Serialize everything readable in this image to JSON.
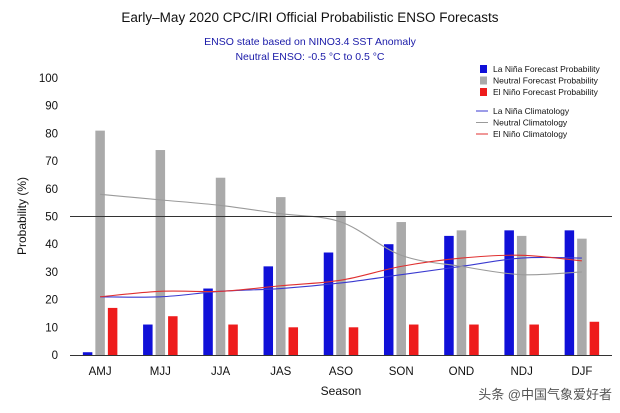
{
  "chart_data": {
    "type": "bar",
    "title": "Early–May 2020 CPC/IRI Official Probabilistic ENSO Forecasts",
    "subtitle_lines": [
      "ENSO state based on NINO3.4 SST Anomaly",
      "Neutral ENSO: -0.5 °C to 0.5 °C"
    ],
    "xlabel": "Season",
    "ylabel": "Probability (%)",
    "ylim": [
      0,
      100
    ],
    "yticks": [
      "0",
      "10",
      "20",
      "30",
      "40",
      "50",
      "60",
      "70",
      "80",
      "90",
      "100"
    ],
    "reference_line": 50,
    "categories": [
      "AMJ",
      "MJJ",
      "JJA",
      "JAS",
      "ASO",
      "SON",
      "OND",
      "NDJ",
      "DJF"
    ],
    "series": [
      {
        "name": "La Niña Forecast Probability",
        "color": "#1010d8",
        "values": [
          1,
          11,
          24,
          32,
          37,
          40,
          43,
          45,
          45
        ]
      },
      {
        "name": "Neutral Forecast Probability",
        "color": "#aaaaaa",
        "values": [
          81,
          74,
          64,
          57,
          52,
          48,
          45,
          43,
          42
        ]
      },
      {
        "name": "El Niño Forecast Probability",
        "color": "#ee1c1c",
        "values": [
          17,
          14,
          11,
          10,
          10,
          11,
          11,
          11,
          12
        ]
      }
    ],
    "climatology": [
      {
        "name": "La Niña Climatology",
        "color": "#3a3ad0",
        "values": [
          21,
          21,
          23,
          24,
          26,
          29,
          32,
          35,
          35
        ]
      },
      {
        "name": "Neutral Climatology",
        "color": "#9a9a9a",
        "values": [
          58,
          56,
          54,
          51,
          48,
          36,
          32,
          29,
          30
        ]
      },
      {
        "name": "El Niño Climatology",
        "color": "#e03030",
        "values": [
          21,
          23,
          23,
          25,
          27,
          32,
          35,
          36,
          34
        ]
      }
    ],
    "legend_position": "top-right",
    "grid": false
  },
  "watermark": "头条 @中国气象爱好者"
}
